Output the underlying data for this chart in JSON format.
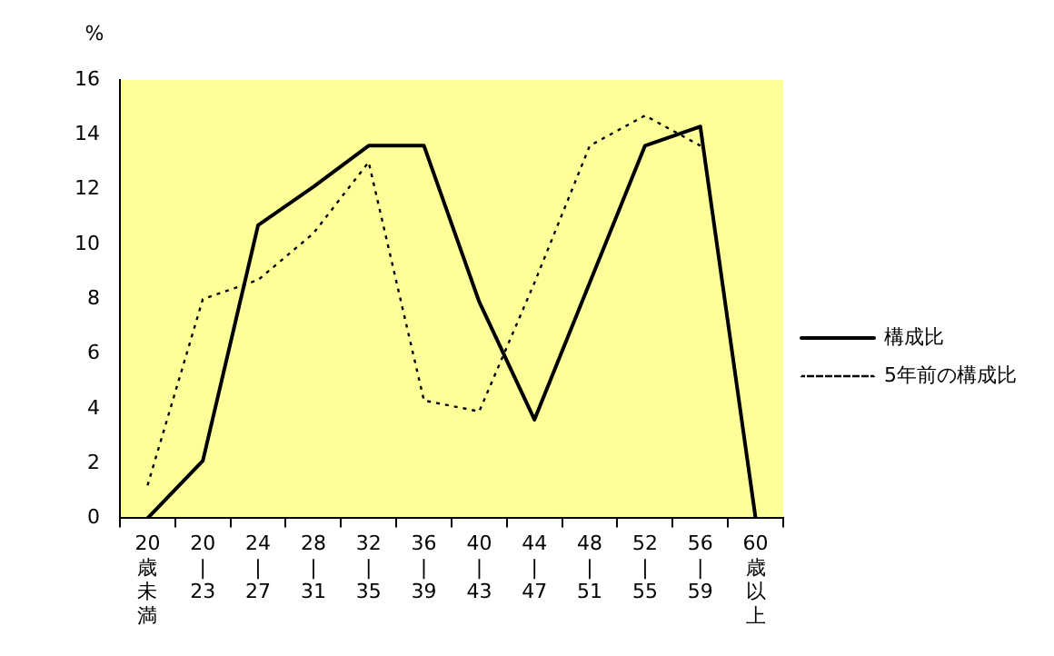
{
  "chart_data": {
    "type": "line",
    "ylabel": "%",
    "categories": [
      "20歳未満",
      "20\n|\n23",
      "24\n|\n27",
      "28\n|\n31",
      "32\n|\n35",
      "36\n|\n39",
      "40\n|\n43",
      "44\n|\n47",
      "48\n|\n51",
      "52\n|\n55",
      "56\n|\n59",
      "60歳以上"
    ],
    "series": [
      {
        "name": "構成比",
        "color": "#000000",
        "line_style": "solid",
        "values": [
          0,
          2.1,
          10.7,
          12.1,
          13.6,
          13.6,
          7.9,
          3.6,
          8.6,
          13.6,
          14.3,
          0
        ]
      },
      {
        "name": "5年前の構成比",
        "color": "#000000",
        "line_style": "dotted",
        "values": [
          1.2,
          8.0,
          8.7,
          10.4,
          13.0,
          4.3,
          3.9,
          8.6,
          13.6,
          14.7,
          13.6,
          null
        ]
      }
    ],
    "ylim": [
      0,
      16
    ],
    "yticks": [
      0,
      2,
      4,
      6,
      8,
      10,
      12,
      14,
      16
    ],
    "grid": false,
    "legend": "right",
    "marker": "none"
  }
}
